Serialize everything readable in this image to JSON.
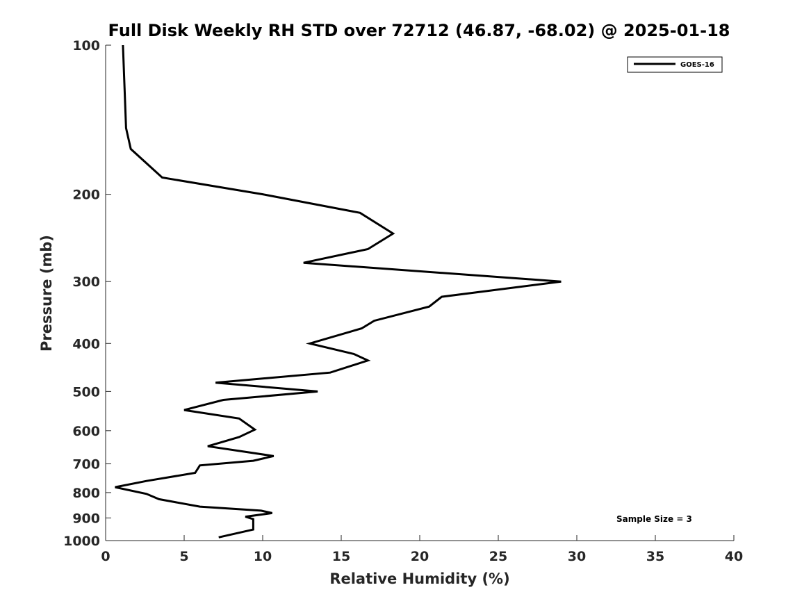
{
  "chart_data": {
    "type": "line",
    "title": "Full Disk Weekly RH STD over 72712 (46.87, -68.02) @ 2025-01-18",
    "xlabel": "Relative Humidity (%)",
    "ylabel": "Pressure (mb)",
    "xlim": [
      0,
      40
    ],
    "ylim": [
      100,
      1000
    ],
    "y_scale": "log",
    "y_reversed": true,
    "x_ticks": [
      0,
      5,
      10,
      15,
      20,
      25,
      30,
      35,
      40
    ],
    "y_ticks": [
      100,
      200,
      300,
      400,
      500,
      600,
      700,
      800,
      900,
      1000
    ],
    "grid": false,
    "legend_position": "top-right",
    "annotation": "Sample Size = 3",
    "series": [
      {
        "name": "GOES-16",
        "color": "#000000",
        "x": [
          1.1,
          1.3,
          1.6,
          3.6,
          10.0,
          16.2,
          18.3,
          16.7,
          12.6,
          29.0,
          21.4,
          20.6,
          17.1,
          16.3,
          13.0,
          15.8,
          16.7,
          14.3,
          7.0,
          13.5,
          7.5,
          5.0,
          8.5,
          9.5,
          8.5,
          6.5,
          10.7,
          9.4,
          6.0,
          5.7,
          2.6,
          0.6,
          2.6,
          3.4,
          6.0,
          9.9,
          10.6,
          8.9,
          9.4,
          9.4,
          9.4,
          7.2
        ],
        "y": [
          100,
          147,
          162,
          185,
          200,
          218,
          240,
          258,
          275,
          300,
          322,
          337,
          360,
          373,
          400,
          420,
          433,
          458,
          480,
          500,
          520,
          545,
          567,
          597,
          618,
          645,
          675,
          690,
          705,
          730,
          758,
          780,
          805,
          825,
          854,
          870,
          880,
          895,
          905,
          915,
          950,
          985
        ]
      }
    ]
  }
}
